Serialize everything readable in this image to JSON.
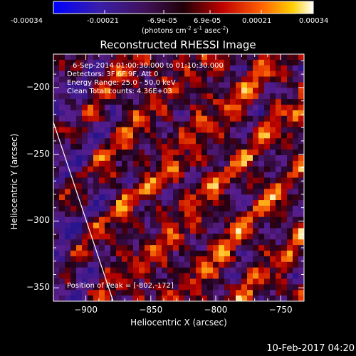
{
  "colorbar": {
    "ticks": [
      "-0.00034",
      "-0.00021",
      "-6.9e-05",
      "6.9e-05",
      "0.00021",
      "0.00034"
    ],
    "unit_label": {
      "pre": "(photons cm",
      "exp1": "-2",
      "mid1": " s",
      "exp2": "-1",
      "mid2": " asec",
      "exp3": "-2",
      "post": ")"
    }
  },
  "chart_data": {
    "type": "heatmap",
    "title": "Reconstructed RHESSI Image",
    "xlabel": "Heliocentric X (arcsec)",
    "ylabel": "Heliocentric Y (arcsec)",
    "xlim": [
      -925,
      -732
    ],
    "ylim": [
      -360,
      -175
    ],
    "xticks": [
      -900,
      -850,
      -800,
      -750
    ],
    "yticks": [
      -350,
      -300,
      -250,
      -200
    ],
    "colormap": "blue-purple-red-yellow-white",
    "clim": [
      -0.00034,
      0.00034
    ],
    "annotations": [
      "6-Sep-2014 01:00:30.000 to 01:10:30.000",
      "Detectors: 3F 6F 9F, Att 0",
      "Energy Range: 25.0 - 50.0 keV",
      "Clean     Total counts: 4.36E+03",
      "Position of Peak = [-802,-172]"
    ],
    "limb_line": {
      "x": [
        -925,
        -879
      ],
      "y": [
        -226,
        -360
      ]
    }
  },
  "footer": {
    "timestamp": "10-Feb-2017 04:20"
  }
}
